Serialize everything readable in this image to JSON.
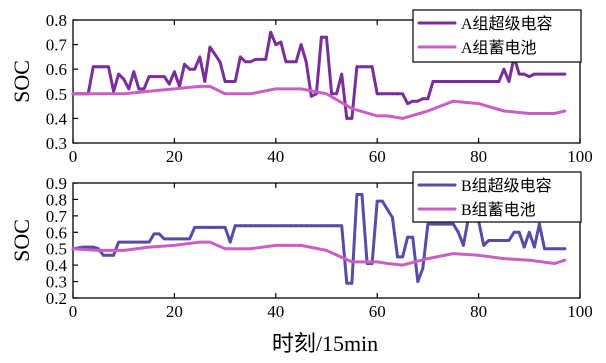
{
  "figure": {
    "xlabel": "时刻/15min"
  },
  "chart_data": [
    {
      "type": "line",
      "panel": "top",
      "ylabel": "SOC",
      "xlim": [
        0,
        100
      ],
      "ylim": [
        0.3,
        0.8
      ],
      "xticks": [
        0,
        20,
        40,
        60,
        80,
        100
      ],
      "yticks": [
        0.3,
        0.4,
        0.5,
        0.6,
        0.7,
        0.8
      ],
      "xtick_labels": [
        "0",
        "20",
        "40",
        "60",
        "80",
        "100"
      ],
      "ytick_labels": [
        "0.3",
        "0.4",
        "0.5",
        "0.6",
        "0.7",
        "0.8"
      ],
      "legend_position": "top-right",
      "series": [
        {
          "name": "A组超级电容",
          "color": "#7a2e9a",
          "width": 3,
          "x": [
            0,
            1,
            2,
            3,
            4,
            5,
            6,
            7,
            8,
            9,
            10,
            11,
            12,
            13,
            14,
            15,
            16,
            17,
            18,
            19,
            20,
            21,
            22,
            23,
            24,
            25,
            26,
            27,
            28,
            29,
            30,
            31,
            32,
            33,
            34,
            35,
            36,
            37,
            38,
            39,
            40,
            41,
            42,
            43,
            44,
            45,
            46,
            47,
            48,
            49,
            50,
            51,
            52,
            53,
            54,
            55,
            56,
            57,
            58,
            59,
            60,
            61,
            62,
            63,
            64,
            65,
            66,
            67,
            68,
            69,
            70,
            71,
            72,
            73,
            74,
            75,
            76,
            77,
            78,
            79,
            80,
            81,
            82,
            83,
            84,
            85,
            86,
            87,
            88,
            89,
            90,
            91,
            92,
            93,
            94,
            95,
            96,
            97
          ],
          "y": [
            0.5,
            0.5,
            0.5,
            0.5,
            0.61,
            0.61,
            0.61,
            0.61,
            0.51,
            0.58,
            0.56,
            0.52,
            0.59,
            0.52,
            0.52,
            0.57,
            0.57,
            0.57,
            0.57,
            0.54,
            0.59,
            0.53,
            0.62,
            0.6,
            0.6,
            0.65,
            0.55,
            0.69,
            0.66,
            0.63,
            0.55,
            0.55,
            0.55,
            0.65,
            0.63,
            0.63,
            0.64,
            0.64,
            0.64,
            0.75,
            0.7,
            0.71,
            0.63,
            0.63,
            0.63,
            0.7,
            0.63,
            0.49,
            0.5,
            0.73,
            0.73,
            0.5,
            0.5,
            0.58,
            0.4,
            0.4,
            0.61,
            0.61,
            0.61,
            0.61,
            0.5,
            0.5,
            0.5,
            0.5,
            0.5,
            0.5,
            0.46,
            0.47,
            0.47,
            0.48,
            0.48,
            0.55,
            0.55,
            0.55,
            0.55,
            0.55,
            0.55,
            0.55,
            0.55,
            0.55,
            0.55,
            0.55,
            0.55,
            0.55,
            0.55,
            0.6,
            0.55,
            0.65,
            0.58,
            0.58,
            0.57,
            0.58,
            0.58,
            0.58,
            0.58,
            0.58,
            0.58,
            0.58
          ]
        },
        {
          "name": "A组蓄电池",
          "color": "#c95fc4",
          "width": 3,
          "x": [
            0,
            5,
            10,
            15,
            20,
            25,
            27,
            30,
            35,
            40,
            45,
            50,
            55,
            60,
            62,
            65,
            70,
            75,
            80,
            85,
            90,
            95,
            97
          ],
          "y": [
            0.5,
            0.5,
            0.5,
            0.51,
            0.52,
            0.53,
            0.53,
            0.5,
            0.5,
            0.52,
            0.52,
            0.5,
            0.44,
            0.41,
            0.41,
            0.4,
            0.43,
            0.47,
            0.46,
            0.43,
            0.42,
            0.42,
            0.43
          ]
        }
      ]
    },
    {
      "type": "line",
      "panel": "bottom",
      "ylabel": "SOC",
      "xlim": [
        0,
        100
      ],
      "ylim": [
        0.2,
        0.9
      ],
      "xticks": [
        0,
        20,
        40,
        60,
        80,
        100
      ],
      "yticks": [
        0.2,
        0.3,
        0.4,
        0.5,
        0.6,
        0.7,
        0.8,
        0.9
      ],
      "xtick_labels": [
        "0",
        "20",
        "40",
        "60",
        "80",
        "100"
      ],
      "ytick_labels": [
        "0.2",
        "0.3",
        "0.4",
        "0.5",
        "0.6",
        "0.7",
        "0.8",
        "0.9"
      ],
      "legend_position": "top-right",
      "series": [
        {
          "name": "B组超级电容",
          "color": "#5b4aa8",
          "width": 3,
          "x": [
            0,
            2,
            4,
            5,
            6,
            7,
            8,
            9,
            10,
            11,
            12,
            13,
            14,
            15,
            16,
            17,
            18,
            19,
            20,
            21,
            22,
            23,
            24,
            25,
            26,
            27,
            28,
            29,
            30,
            31,
            32,
            33,
            34,
            35,
            36,
            37,
            38,
            39,
            40,
            41,
            42,
            43,
            44,
            45,
            46,
            47,
            48,
            49,
            50,
            51,
            52,
            53,
            54,
            55,
            56,
            57,
            58,
            59,
            60,
            61,
            62,
            63,
            64,
            65,
            66,
            67,
            68,
            69,
            70,
            71,
            72,
            73,
            74,
            75,
            76,
            77,
            78,
            79,
            80,
            81,
            82,
            83,
            84,
            85,
            86,
            87,
            88,
            89,
            90,
            91,
            92,
            93,
            94,
            95,
            96,
            97
          ],
          "y": [
            0.5,
            0.51,
            0.51,
            0.5,
            0.46,
            0.46,
            0.46,
            0.54,
            0.54,
            0.54,
            0.54,
            0.54,
            0.54,
            0.54,
            0.59,
            0.59,
            0.56,
            0.56,
            0.56,
            0.56,
            0.56,
            0.56,
            0.63,
            0.63,
            0.63,
            0.63,
            0.63,
            0.63,
            0.63,
            0.54,
            0.64,
            0.64,
            0.64,
            0.64,
            0.64,
            0.64,
            0.64,
            0.64,
            0.64,
            0.64,
            0.64,
            0.64,
            0.64,
            0.64,
            0.64,
            0.64,
            0.64,
            0.64,
            0.64,
            0.64,
            0.64,
            0.64,
            0.29,
            0.29,
            0.83,
            0.83,
            0.41,
            0.41,
            0.79,
            0.79,
            0.74,
            0.69,
            0.45,
            0.45,
            0.57,
            0.57,
            0.3,
            0.38,
            0.65,
            0.65,
            0.65,
            0.65,
            0.65,
            0.65,
            0.6,
            0.52,
            0.69,
            0.69,
            0.67,
            0.52,
            0.55,
            0.55,
            0.55,
            0.55,
            0.55,
            0.6,
            0.6,
            0.51,
            0.6,
            0.51,
            0.65,
            0.5,
            0.5,
            0.5,
            0.5,
            0.5
          ]
        },
        {
          "name": "B组蓄电池",
          "color": "#c95fc4",
          "width": 3,
          "x": [
            0,
            5,
            10,
            15,
            20,
            25,
            27,
            30,
            35,
            40,
            45,
            50,
            55,
            60,
            62,
            65,
            70,
            75,
            80,
            85,
            90,
            95,
            97
          ],
          "y": [
            0.5,
            0.49,
            0.49,
            0.51,
            0.52,
            0.54,
            0.54,
            0.5,
            0.5,
            0.52,
            0.52,
            0.49,
            0.42,
            0.42,
            0.41,
            0.4,
            0.44,
            0.47,
            0.46,
            0.44,
            0.43,
            0.41,
            0.43
          ]
        }
      ]
    }
  ]
}
